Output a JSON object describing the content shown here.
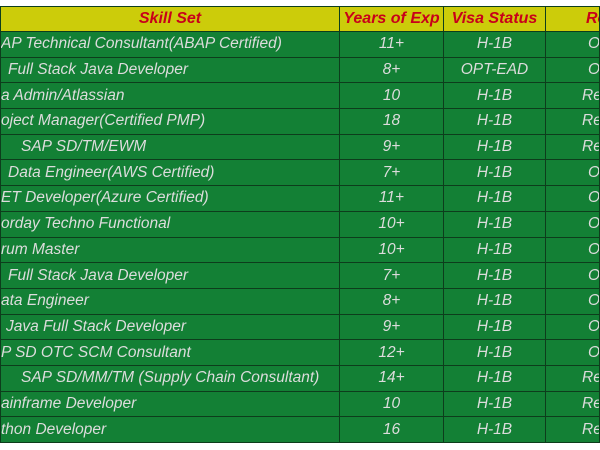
{
  "headers": {
    "skill": "Skill Set",
    "years": "Years of Exp",
    "visa": "Visa Status",
    "reloc": "Reloc"
  },
  "colors": {
    "header_bg": "#cccc0a",
    "header_text": "#c8001a",
    "row_bg": "#138035",
    "row_text": "#dcdcdc"
  },
  "rows": [
    {
      "skill": "AP Technical Consultant(ABAP Certified)",
      "years": "11+",
      "visa": "H-1B",
      "reloc": "Op"
    },
    {
      "skill": "Full Stack Java Developer",
      "years": "8+",
      "visa": "OPT-EAD",
      "reloc": "Op"
    },
    {
      "skill": "a Admin/Atlassian",
      "years": "10",
      "visa": "H-1B",
      "reloc": "Rem"
    },
    {
      "skill": "oject Manager(Certified PMP)",
      "years": "18",
      "visa": "H-1B",
      "reloc": "Rem"
    },
    {
      "skill": "SAP SD/TM/EWM",
      "years": "9+",
      "visa": "H-1B",
      "reloc": "Rem"
    },
    {
      "skill": "Data Engineer(AWS Certified)",
      "years": "7+",
      "visa": "H-1B",
      "reloc": "Op"
    },
    {
      "skill": "ET Developer(Azure Certified)",
      "years": "11+",
      "visa": "H-1B",
      "reloc": "Op"
    },
    {
      "skill": "orday Techno Functional",
      "years": "10+",
      "visa": "H-1B",
      "reloc": "Op"
    },
    {
      "skill": "rum Master",
      "years": "10+",
      "visa": "H-1B",
      "reloc": "Op"
    },
    {
      "skill": "Full Stack Java Developer",
      "years": "7+",
      "visa": "H-1B",
      "reloc": "Op"
    },
    {
      "skill": "ata Engineer",
      "years": "8+",
      "visa": "H-1B",
      "reloc": "Op"
    },
    {
      "skill": "Java Full Stack Developer",
      "years": "9+",
      "visa": "H-1B",
      "reloc": "Op"
    },
    {
      "skill": "P SD OTC SCM Consultant",
      "years": "12+",
      "visa": "H-1B",
      "reloc": "Op"
    },
    {
      "skill": "SAP SD/MM/TM (Supply Chain Consultant)",
      "years": "14+",
      "visa": "H-1B",
      "reloc": "Rem"
    },
    {
      "skill": "ainframe Developer",
      "years": "10",
      "visa": "H-1B",
      "reloc": "Rem"
    },
    {
      "skill": "thon Developer",
      "years": "16",
      "visa": "H-1B",
      "reloc": "Rem"
    }
  ]
}
